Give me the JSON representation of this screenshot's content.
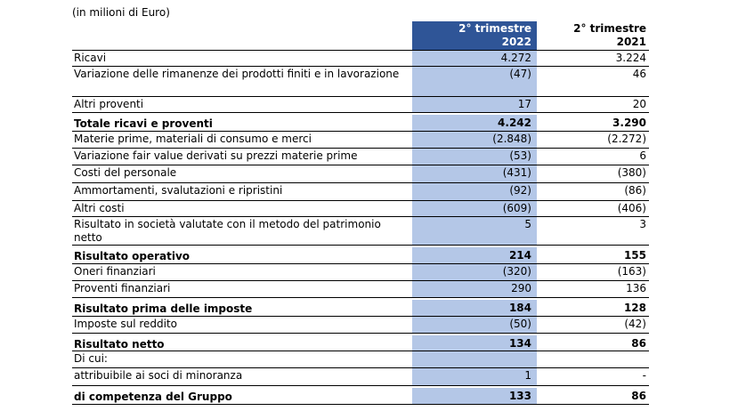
{
  "unit_note": "(in milioni di Euro)",
  "header": {
    "col1": [
      "2° trimestre",
      "2022"
    ],
    "col2": [
      "2° trimestre",
      "2021"
    ]
  },
  "rows": [
    {
      "label": "Ricavi",
      "v1": "4.272",
      "v2": "3.224",
      "bold": false,
      "h": 17
    },
    {
      "label": "Variazione delle rimanenze dei prodotti finiti e in lavorazione",
      "v1": "(47)",
      "v2": "46",
      "bold": false,
      "h": 33
    },
    {
      "label": "Altri proventi",
      "v1": "17",
      "v2": "20",
      "bold": false,
      "h": 17
    },
    {
      "label": "Totale ricavi e proventi",
      "v1": "4.242",
      "v2": "3.290",
      "bold": true,
      "h": 20
    },
    {
      "label": "Materie prime, materiali di consumo e merci",
      "v1": "(2.848)",
      "v2": "(2.272)",
      "bold": false,
      "h": 18
    },
    {
      "label": "Variazione fair value derivati su prezzi materie prime",
      "v1": "(53)",
      "v2": "6",
      "bold": false,
      "h": 18
    },
    {
      "label": "Costi del personale",
      "v1": "(431)",
      "v2": "(380)",
      "bold": false,
      "h": 19
    },
    {
      "label": "Ammortamenti, svalutazioni e ripristini",
      "v1": "(92)",
      "v2": "(86)",
      "bold": false,
      "h": 19
    },
    {
      "label": "Altri costi",
      "v1": "(609)",
      "v2": "(406)",
      "bold": false,
      "h": 17
    },
    {
      "label": "Risultato in società valutate con il metodo del patrimonio netto",
      "v1": "5",
      "v2": "3",
      "bold": false,
      "h": 31
    },
    {
      "label": "Risultato operativo",
      "v1": "214",
      "v2": "155",
      "bold": true,
      "h": 20
    },
    {
      "label": "Oneri finanziari",
      "v1": "(320)",
      "v2": "(163)",
      "bold": false,
      "h": 18
    },
    {
      "label": "Proventi finanziari",
      "v1": "290",
      "v2": "136",
      "bold": false,
      "h": 18
    },
    {
      "label": "Risultato prima delle imposte",
      "v1": "184",
      "v2": "128",
      "bold": true,
      "h": 20
    },
    {
      "label": "Imposte sul reddito",
      "v1": "(50)",
      "v2": "(42)",
      "bold": false,
      "h": 18
    },
    {
      "label": "Risultato netto",
      "v1": "134",
      "v2": "86",
      "bold": true,
      "h": 19
    },
    {
      "label": "Di cui:",
      "v1": "",
      "v2": "",
      "bold": false,
      "h": 18
    },
    {
      "label": "attribuibile ai soci di minoranza",
      "v1": "1",
      "v2": "-",
      "bold": false,
      "h": 19
    },
    {
      "label": "di competenza del Gruppo",
      "v1": "133",
      "v2": "86",
      "bold": true,
      "h": 20
    }
  ]
}
